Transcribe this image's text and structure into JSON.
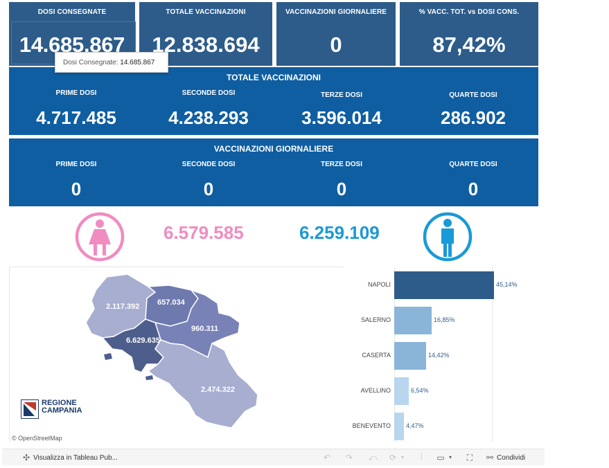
{
  "kpis": [
    {
      "label": "DOSI  CONSEGNATE",
      "value": "14.685.867"
    },
    {
      "label": "TOTALE VACCINAZIONI",
      "value": "12.838.694"
    },
    {
      "label": "VACCINAZIONI GIORNALIERE",
      "value": "0"
    },
    {
      "label": "% VACC. TOT. vs DOSI CONS.",
      "value": "87,42%"
    }
  ],
  "tooltip": {
    "label": "Dosi Consegnate:",
    "value": "14.685.867"
  },
  "totale": {
    "title": "TOTALE VACCINAZIONI",
    "cols": [
      {
        "label": "PRIME DOSI",
        "value": "4.717.485"
      },
      {
        "label": "SECONDE DOSI",
        "value": "4.238.293"
      },
      {
        "label": "TERZE DOSI",
        "value": "3.596.014"
      },
      {
        "label": "QUARTE DOSI",
        "value": "286.902"
      }
    ]
  },
  "giornaliere": {
    "title": "VACCINAZIONI GIORNALIERE",
    "cols": [
      {
        "label": "PRIME DOSI",
        "value": "0"
      },
      {
        "label": "SECONDE DOSI",
        "value": "0"
      },
      {
        "label": "TERZE DOSI",
        "value": "0"
      },
      {
        "label": "QUARTE DOSI",
        "value": "0"
      }
    ]
  },
  "gender": {
    "female_value": "6.579.585",
    "male_value": "6.259.109",
    "female_color": "#f08cc0",
    "male_color": "#1a9ad6",
    "female_icon": "female-icon",
    "male_icon": "male-icon"
  },
  "map": {
    "provinces": [
      {
        "name": "Caserta",
        "value": "2.117.392"
      },
      {
        "name": "Benevento",
        "value": "657.034"
      },
      {
        "name": "Avellino",
        "value": "960.311"
      },
      {
        "name": "Napoli",
        "value": "6.629.635"
      },
      {
        "name": "Salerno",
        "value": "2.474.322"
      }
    ],
    "logo_line1": "REGIONE",
    "logo_line2": "CAMPANIA",
    "attribution": "© OpenStreetMap"
  },
  "chart_data": {
    "type": "bar",
    "orientation": "horizontal",
    "categories": [
      "NAPOLI",
      "SALERNO",
      "CASERTA",
      "AVELLINO",
      "BENEVENTO"
    ],
    "values": [
      45.14,
      16.85,
      14.42,
      6.54,
      4.47
    ],
    "labels": [
      "45,14%",
      "16,85%",
      "14,42%",
      "6,54%",
      "4,47%"
    ],
    "colors": [
      "#2d5c8a",
      "#8ab5d9",
      "#8ab5d9",
      "#b8d6ee",
      "#b8d6ee"
    ],
    "xlim": [
      0,
      50
    ]
  },
  "toolbar": {
    "view_label": "Visualizza in Tableau Pub...",
    "share_label": "Condividi"
  }
}
